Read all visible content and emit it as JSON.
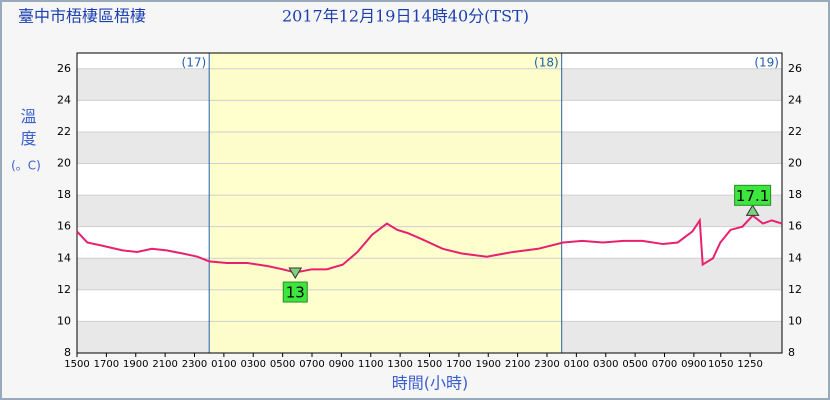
{
  "chart_data": {
    "type": "line",
    "title": "臺中市梧棲區梧棲",
    "subtitle": "2017年12月19日14時40分(TST)",
    "y_label": "溫度",
    "y_unit": "(。C)",
    "x_label": "時間(小時)",
    "x": [
      0,
      0.7,
      1.7,
      3.1,
      4.1,
      5.1,
      6.1,
      7.2,
      8.2,
      9,
      10.2,
      11.6,
      13,
      14,
      14.86,
      16,
      17,
      18.1,
      19.1,
      20.1,
      21.1,
      21.8,
      22.5,
      23.5,
      24.9,
      26.2,
      27.9,
      29.7,
      31.4,
      33.1,
      34.4,
      35.8,
      37.2,
      38.5,
      39.9,
      40.9,
      41.9,
      42.4,
      42.6,
      43.3,
      43.8,
      44.5,
      45.3,
      46.0,
      46.7,
      47.3,
      48
    ],
    "series": [
      {
        "name": "溫度",
        "color": "#e8206e",
        "values": [
          15.7,
          15.0,
          14.8,
          14.5,
          14.4,
          14.6,
          14.5,
          14.3,
          14.1,
          13.8,
          13.7,
          13.7,
          13.5,
          13.3,
          13.1,
          13.3,
          13.3,
          13.6,
          14.4,
          15.5,
          16.2,
          15.8,
          15.6,
          15.2,
          14.6,
          14.3,
          14.1,
          14.4,
          14.6,
          15.0,
          15.1,
          15.0,
          15.1,
          15.1,
          14.9,
          15.0,
          15.7,
          16.4,
          13.6,
          14.0,
          15.0,
          15.8,
          16.0,
          16.7,
          16.2,
          16.4,
          16.2
        ]
      }
    ],
    "xlim": [
      0,
      48
    ],
    "xticks": [
      {
        "value": 0,
        "label": "1500"
      },
      {
        "value": 2,
        "label": "1700"
      },
      {
        "value": 4,
        "label": "1900"
      },
      {
        "value": 6,
        "label": "2100"
      },
      {
        "value": 8,
        "label": "2300"
      },
      {
        "value": 10,
        "label": "0100"
      },
      {
        "value": 12,
        "label": "0300"
      },
      {
        "value": 14,
        "label": "0500"
      },
      {
        "value": 16,
        "label": "0700"
      },
      {
        "value": 18,
        "label": "0900"
      },
      {
        "value": 20,
        "label": "1100"
      },
      {
        "value": 22,
        "label": "1300"
      },
      {
        "value": 24,
        "label": "1500"
      },
      {
        "value": 26,
        "label": "1700"
      },
      {
        "value": 28,
        "label": "1900"
      },
      {
        "value": 30,
        "label": "2100"
      },
      {
        "value": 32,
        "label": "2300"
      },
      {
        "value": 34,
        "label": "0100"
      },
      {
        "value": 36,
        "label": "0300"
      },
      {
        "value": 38,
        "label": "0500"
      },
      {
        "value": 40,
        "label": "0700"
      },
      {
        "value": 42,
        "label": "0900"
      },
      {
        "value": 43.83,
        "label": "1050"
      },
      {
        "value": 45.83,
        "label": "1250"
      }
    ],
    "ylim": [
      8,
      27
    ],
    "yticks": [
      8,
      10,
      12,
      14,
      16,
      18,
      20,
      22,
      24,
      26
    ],
    "day_lines": [
      9,
      33
    ],
    "day_labels": [
      "(17)",
      "(18)",
      "(19)"
    ],
    "shade": [
      9,
      33
    ],
    "annotations": [
      {
        "x": 14.86,
        "value": 13,
        "kind": "min"
      },
      {
        "x": 46.0,
        "value": 17.1,
        "kind": "max"
      }
    ]
  }
}
